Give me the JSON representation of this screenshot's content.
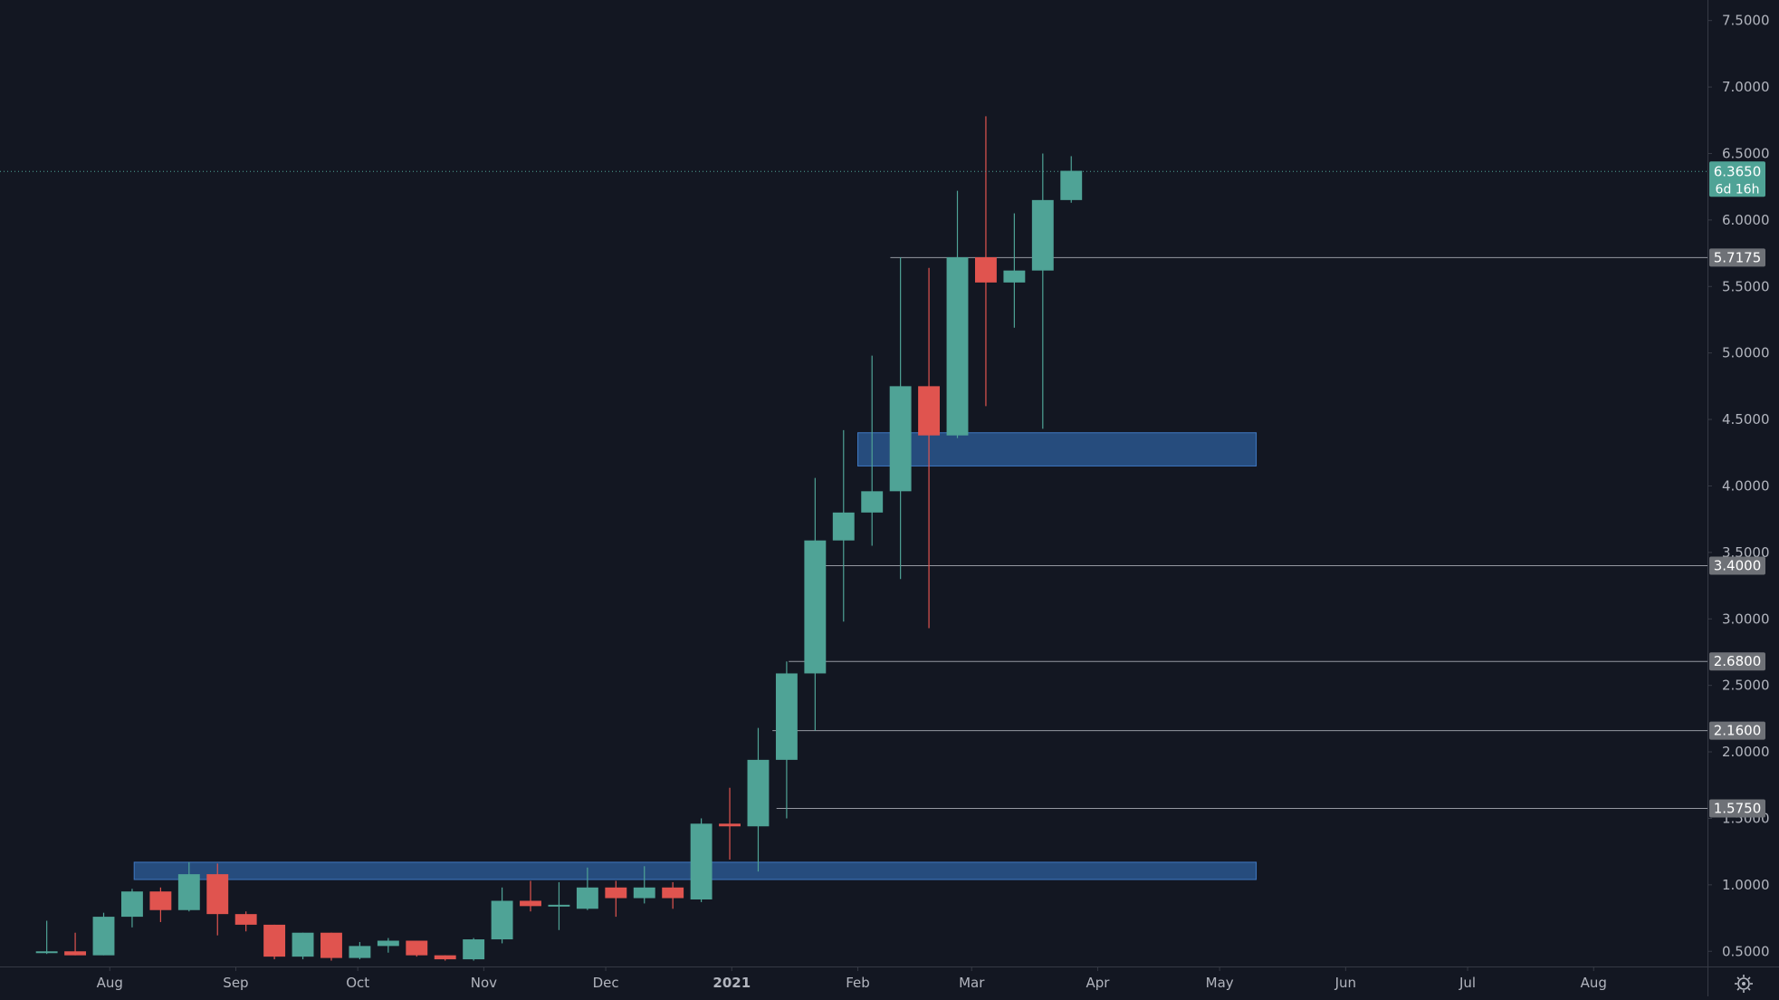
{
  "colors": {
    "background": "#131722",
    "up": "#4fa396",
    "down": "#e0544f",
    "axis_line": "#363a45",
    "axis_text": "#b2b5be",
    "level_line": "#9598a1",
    "level_label_bg": "#6e7177",
    "level_label_text": "#ffffff",
    "zone_fill": "#2c5a95",
    "zone_stroke": "#3f78c2",
    "current_price": "#4fa396"
  },
  "chart_data": {
    "type": "candlestick",
    "timeframe": "weekly",
    "grid": false,
    "y_axis": {
      "position": "right",
      "range": [
        0.42,
        7.6
      ],
      "ticks": [
        "0.5000",
        "1.0000",
        "1.5000",
        "2.0000",
        "2.5000",
        "3.0000",
        "3.5000",
        "4.0000",
        "4.5000",
        "5.0000",
        "5.5000",
        "6.0000",
        "6.5000",
        "7.0000",
        "7.5000"
      ]
    },
    "x_axis": {
      "range": [
        "2020-07-05",
        "2021-08-29"
      ],
      "ticks": [
        {
          "date": "2020-08-01",
          "label": "Aug",
          "bold": false
        },
        {
          "date": "2020-09-01",
          "label": "Sep",
          "bold": false
        },
        {
          "date": "2020-10-01",
          "label": "Oct",
          "bold": false
        },
        {
          "date": "2020-11-01",
          "label": "Nov",
          "bold": false
        },
        {
          "date": "2020-12-01",
          "label": "Dec",
          "bold": false
        },
        {
          "date": "2021-01-01",
          "label": "2021",
          "bold": true
        },
        {
          "date": "2021-02-01",
          "label": "Feb",
          "bold": false
        },
        {
          "date": "2021-03-01",
          "label": "Mar",
          "bold": false
        },
        {
          "date": "2021-04-01",
          "label": "Apr",
          "bold": false
        },
        {
          "date": "2021-05-01",
          "label": "May",
          "bold": false
        },
        {
          "date": "2021-06-01",
          "label": "Jun",
          "bold": false
        },
        {
          "date": "2021-07-01",
          "label": "Jul",
          "bold": false
        },
        {
          "date": "2021-08-01",
          "label": "Aug",
          "bold": false
        }
      ]
    },
    "candles": [
      {
        "date": "2020-07-13",
        "open": 0.49,
        "high": 0.73,
        "low": 0.48,
        "close": 0.5
      },
      {
        "date": "2020-07-20",
        "open": 0.5,
        "high": 0.64,
        "low": 0.47,
        "close": 0.47
      },
      {
        "date": "2020-07-27",
        "open": 0.47,
        "high": 0.79,
        "low": 0.47,
        "close": 0.76
      },
      {
        "date": "2020-08-03",
        "open": 0.76,
        "high": 0.97,
        "low": 0.68,
        "close": 0.95
      },
      {
        "date": "2020-08-10",
        "open": 0.95,
        "high": 0.98,
        "low": 0.72,
        "close": 0.81
      },
      {
        "date": "2020-08-17",
        "open": 0.81,
        "high": 1.17,
        "low": 0.8,
        "close": 1.08
      },
      {
        "date": "2020-08-24",
        "open": 1.08,
        "high": 1.16,
        "low": 0.62,
        "close": 0.78
      },
      {
        "date": "2020-08-31",
        "open": 0.78,
        "high": 0.8,
        "low": 0.65,
        "close": 0.7
      },
      {
        "date": "2020-09-07",
        "open": 0.7,
        "high": 0.7,
        "low": 0.44,
        "close": 0.46
      },
      {
        "date": "2020-09-14",
        "open": 0.46,
        "high": 0.64,
        "low": 0.44,
        "close": 0.64
      },
      {
        "date": "2020-09-21",
        "open": 0.64,
        "high": 0.64,
        "low": 0.43,
        "close": 0.45
      },
      {
        "date": "2020-09-28",
        "open": 0.45,
        "high": 0.57,
        "low": 0.44,
        "close": 0.54
      },
      {
        "date": "2020-10-05",
        "open": 0.54,
        "high": 0.6,
        "low": 0.49,
        "close": 0.58
      },
      {
        "date": "2020-10-12",
        "open": 0.58,
        "high": 0.58,
        "low": 0.46,
        "close": 0.47
      },
      {
        "date": "2020-10-19",
        "open": 0.47,
        "high": 0.47,
        "low": 0.43,
        "close": 0.44
      },
      {
        "date": "2020-10-26",
        "open": 0.44,
        "high": 0.6,
        "low": 0.43,
        "close": 0.59
      },
      {
        "date": "2020-11-02",
        "open": 0.59,
        "high": 0.98,
        "low": 0.56,
        "close": 0.88
      },
      {
        "date": "2020-11-09",
        "open": 0.88,
        "high": 1.03,
        "low": 0.8,
        "close": 0.84
      },
      {
        "date": "2020-11-16",
        "open": 0.84,
        "high": 1.02,
        "low": 0.66,
        "close": 0.85
      },
      {
        "date": "2020-11-23",
        "open": 0.82,
        "high": 1.13,
        "low": 0.81,
        "close": 0.98
      },
      {
        "date": "2020-11-30",
        "open": 0.98,
        "high": 1.03,
        "low": 0.76,
        "close": 0.9
      },
      {
        "date": "2020-12-07",
        "open": 0.9,
        "high": 1.14,
        "low": 0.86,
        "close": 0.98
      },
      {
        "date": "2020-12-14",
        "open": 0.98,
        "high": 1.02,
        "low": 0.82,
        "close": 0.9
      },
      {
        "date": "2020-12-21",
        "open": 0.89,
        "high": 1.5,
        "low": 0.87,
        "close": 1.46
      },
      {
        "date": "2020-12-28",
        "open": 1.46,
        "high": 1.73,
        "low": 1.19,
        "close": 1.44
      },
      {
        "date": "2021-01-04",
        "open": 1.44,
        "high": 2.18,
        "low": 1.1,
        "close": 1.94
      },
      {
        "date": "2021-01-11",
        "open": 1.94,
        "high": 2.68,
        "low": 1.5,
        "close": 2.59
      },
      {
        "date": "2021-01-18",
        "open": 2.59,
        "high": 4.06,
        "low": 2.16,
        "close": 3.59
      },
      {
        "date": "2021-01-25",
        "open": 3.59,
        "high": 4.42,
        "low": 2.98,
        "close": 3.8
      },
      {
        "date": "2021-02-01",
        "open": 3.8,
        "high": 4.98,
        "low": 3.55,
        "close": 3.96
      },
      {
        "date": "2021-02-08",
        "open": 3.96,
        "high": 5.72,
        "low": 3.3,
        "close": 4.75
      },
      {
        "date": "2021-02-15",
        "open": 4.75,
        "high": 5.64,
        "low": 2.93,
        "close": 4.38
      },
      {
        "date": "2021-02-22",
        "open": 4.38,
        "high": 6.22,
        "low": 4.36,
        "close": 5.72
      },
      {
        "date": "2021-03-01",
        "open": 5.72,
        "high": 6.78,
        "low": 4.6,
        "close": 5.53
      },
      {
        "date": "2021-03-08",
        "open": 5.53,
        "high": 6.05,
        "low": 5.19,
        "close": 5.62
      },
      {
        "date": "2021-03-15",
        "open": 5.62,
        "high": 6.5,
        "low": 4.43,
        "close": 6.15
      },
      {
        "date": "2021-03-22",
        "open": 6.15,
        "high": 6.48,
        "low": 6.13,
        "close": 6.37
      }
    ],
    "horizontal_levels": [
      {
        "value": 5.7175,
        "label": "5.7175",
        "from": "2021-02-09"
      },
      {
        "value": 3.4,
        "label": "3.4000",
        "from": "2021-01-23"
      },
      {
        "value": 2.68,
        "label": "2.6800",
        "from": "2021-01-15"
      },
      {
        "value": 2.16,
        "label": "2.1600",
        "from": "2021-01-11"
      },
      {
        "value": 1.575,
        "label": "1.5750",
        "from": "2021-01-12"
      }
    ],
    "zones": [
      {
        "from": "2021-02-01",
        "to": "2021-05-10",
        "top": 4.4,
        "bottom": 4.15
      },
      {
        "from": "2020-08-07",
        "to": "2021-05-10",
        "top": 1.17,
        "bottom": 1.04
      }
    ],
    "current_price": {
      "value": 6.365,
      "label": "6.3650",
      "countdown": "6d 16h"
    }
  }
}
